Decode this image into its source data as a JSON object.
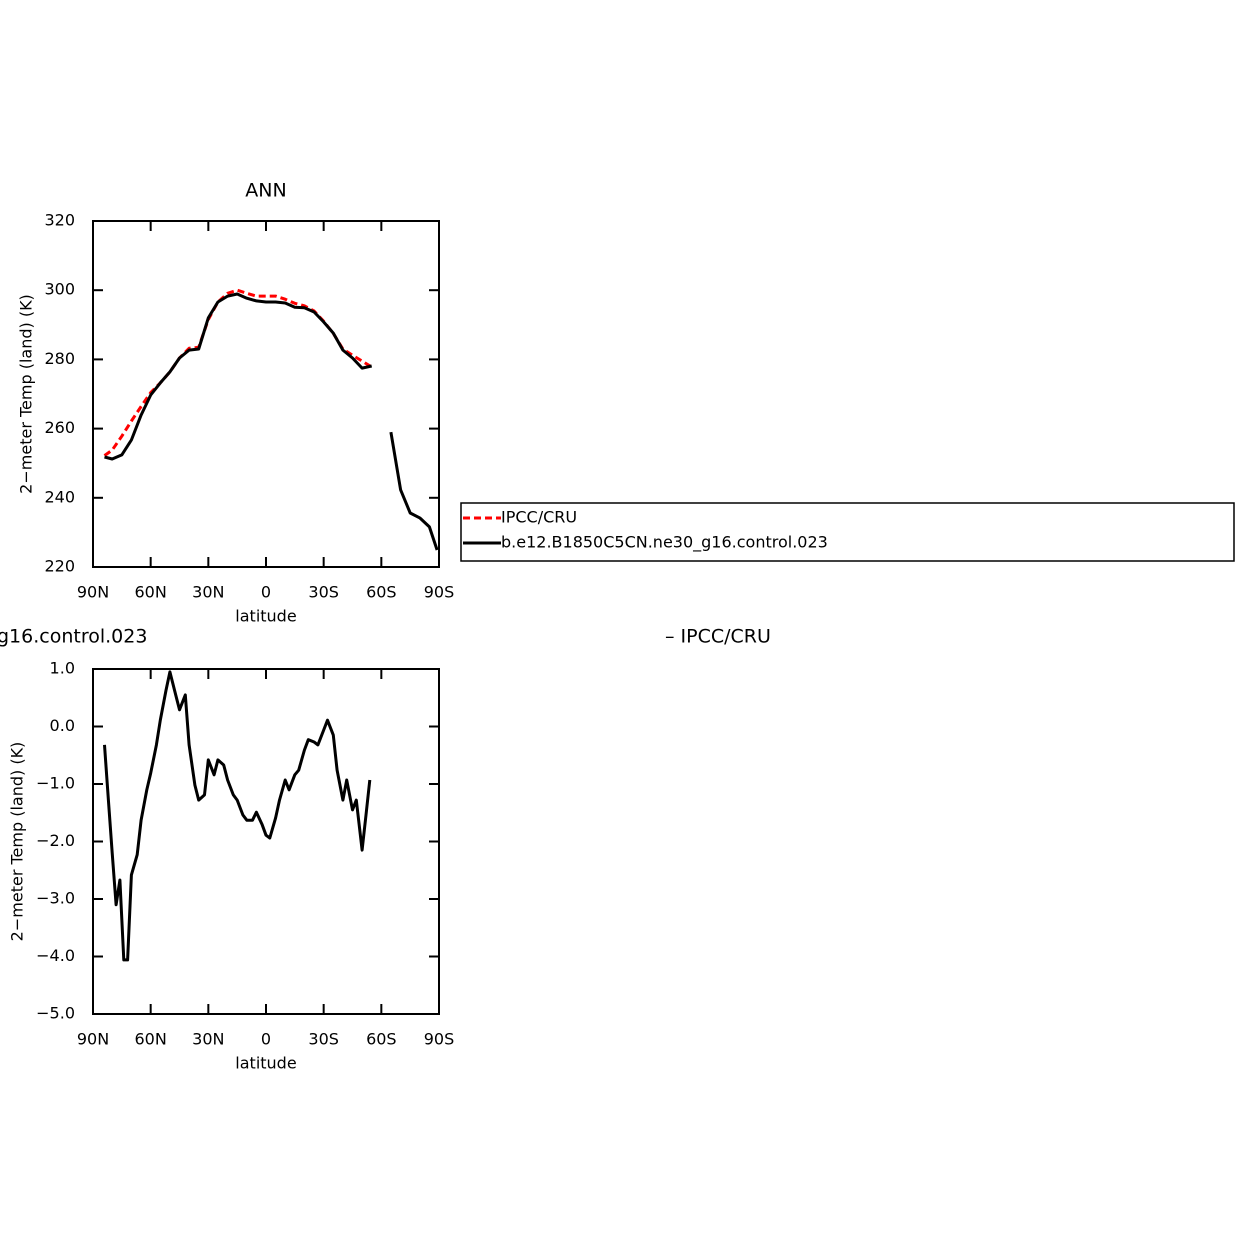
{
  "chart_data": [
    {
      "type": "line",
      "title": "ANN",
      "xlabel": "latitude",
      "ylabel": "2−meter Temp (land) (K)",
      "x": [
        84,
        80,
        75,
        70,
        65,
        60,
        55,
        50,
        45,
        40,
        35,
        30,
        25,
        20,
        15,
        10,
        5,
        0,
        -5,
        -10,
        -15,
        -20,
        -25,
        -30,
        -35,
        -40,
        -45,
        -50,
        -55,
        -60,
        -65,
        -70,
        -75,
        -80,
        -85,
        -89
      ],
      "series": [
        {
          "name": "IPCC/CRU",
          "color": "#ff0000",
          "linestyle": "dashed",
          "values": [
            252.2,
            253.8,
            257.8,
            262.2,
            266.4,
            270.4,
            273.2,
            276.4,
            280.4,
            283.2,
            283.5,
            291.5,
            296.6,
            299.1,
            300,
            299.1,
            298.3,
            298.3,
            298.3,
            297.4,
            296.2,
            295.5,
            294,
            291,
            287.5,
            283,
            281.2,
            279.5,
            277.8,
            null,
            null,
            null,
            null,
            null,
            null,
            null
          ]
        },
        {
          "name": "b.e12.B1850C5CN.ne30_g16.control.023",
          "color": "#000000",
          "linestyle": "solid",
          "values": [
            251.8,
            251.2,
            252.4,
            256.7,
            263.9,
            269.7,
            273.2,
            276.4,
            280.4,
            282.7,
            283,
            292,
            296.6,
            298.3,
            298.9,
            297.7,
            296.9,
            296.6,
            296.6,
            296.3,
            295.1,
            294.9,
            293.7,
            290.8,
            287.6,
            282.7,
            280.4,
            277.5,
            278.1,
            null,
            259,
            242.3,
            235.6,
            234.2,
            231.6,
            224.9
          ]
        }
      ],
      "xlim": [
        90,
        -90
      ],
      "xticks": [
        {
          "value": 90,
          "label": "90N"
        },
        {
          "value": 60,
          "label": "60N"
        },
        {
          "value": 30,
          "label": "30N"
        },
        0,
        {
          "value": -30,
          "label": "30S"
        },
        {
          "value": -60,
          "label": "60S"
        },
        {
          "value": -90,
          "label": "90S"
        }
      ],
      "ylim": [
        220,
        320
      ],
      "yticks": [
        220,
        240,
        260,
        280,
        300,
        320
      ],
      "grid": false,
      "legend": "right"
    },
    {
      "type": "line",
      "title_left": "g16.control.023",
      "title_right": "– IPCC/CRU",
      "xlabel": "latitude",
      "ylabel": "2−meter Temp (land) (K)",
      "x": [
        84,
        82,
        80,
        78,
        76,
        74,
        72,
        70,
        67,
        65,
        62,
        60,
        57,
        55,
        52,
        50,
        47,
        45,
        42,
        40,
        37,
        35,
        32,
        30,
        27,
        25,
        22,
        20,
        17,
        15,
        12,
        10,
        7,
        5,
        2,
        0,
        -2,
        -5,
        -7,
        -10,
        -12,
        -15,
        -17,
        -20,
        -22,
        -25,
        -27,
        -30,
        -32,
        -35,
        -37,
        -40,
        -42,
        -45,
        -47,
        -50,
        -52,
        -54
      ],
      "series": [
        {
          "name": "b.e12.B1850C5CN.ne30_g16.control.023 – IPCC/CRU",
          "color": "#000000",
          "linestyle": "solid",
          "values": [
            -0.32,
            -1.28,
            -2.2,
            -3.1,
            -2.67,
            -4.06,
            -4.06,
            -2.58,
            -2.23,
            -1.63,
            -1.1,
            -0.81,
            -0.32,
            0.11,
            0.63,
            0.95,
            0.55,
            0.29,
            0.55,
            -0.32,
            -1.02,
            -1.28,
            -1.19,
            -0.58,
            -0.84,
            -0.58,
            -0.67,
            -0.93,
            -1.19,
            -1.28,
            -1.54,
            -1.63,
            -1.63,
            -1.49,
            -1.71,
            -1.89,
            -1.94,
            -1.59,
            -1.28,
            -0.93,
            -1.1,
            -0.84,
            -0.76,
            -0.41,
            -0.23,
            -0.27,
            -0.32,
            -0.06,
            0.11,
            -0.15,
            -0.76,
            -1.28,
            -0.93,
            -1.45,
            -1.28,
            -2.15,
            -1.54,
            -0.93
          ]
        }
      ],
      "xlim": [
        90,
        -90
      ],
      "xticks": [
        {
          "value": 90,
          "label": "90N"
        },
        {
          "value": 60,
          "label": "60N"
        },
        {
          "value": 30,
          "label": "30N"
        },
        0,
        {
          "value": -30,
          "label": "30S"
        },
        {
          "value": -60,
          "label": "60S"
        },
        {
          "value": -90,
          "label": "90S"
        }
      ],
      "ylim": [
        -5,
        1
      ],
      "yticks": [
        {
          "value": -5,
          "label": "−5.0"
        },
        {
          "value": -4,
          "label": "−4.0"
        },
        {
          "value": -3,
          "label": "−3.0"
        },
        {
          "value": -2,
          "label": "−2.0"
        },
        {
          "value": -1,
          "label": "−1.0"
        },
        {
          "value": 0,
          "label": "0.0"
        },
        {
          "value": 1,
          "label": "1.0"
        }
      ],
      "grid": false
    }
  ]
}
